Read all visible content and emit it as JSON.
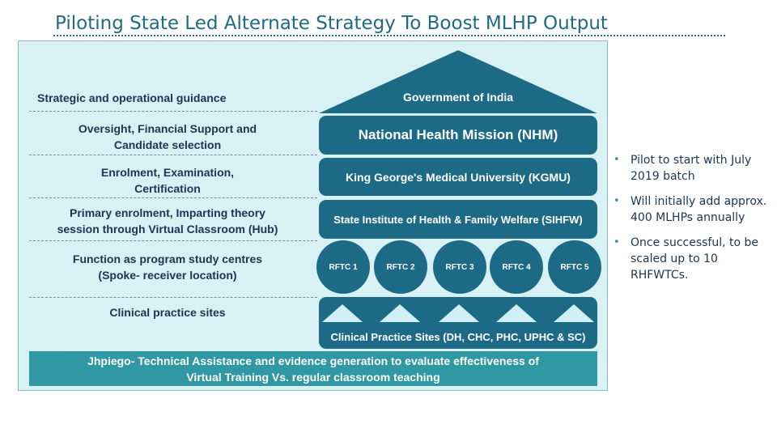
{
  "title": "Piloting State Led Alternate Strategy To Boost MLHP Output",
  "left_labels": [
    "Strategic and operational guidance",
    "Oversight, Financial Support and\nCandidate selection",
    "Enrolment, Examination,\nCertification",
    "Primary enrolment, Imparting theory\nsession through Virtual Classroom (Hub)",
    "Function as program study centres\n(Spoke- receiver location)",
    "Clinical practice sites"
  ],
  "tiers": {
    "goi": "Government of India",
    "nhm": "National Health Mission (NHM)",
    "kgmu": "King George's Medical University (KGMU)",
    "sihfw": "State Institute of Health & Family Welfare (SIHFW)",
    "rftc": [
      "RFTC 1",
      "RFTC 2",
      "RFTC 3",
      "RFTC 4",
      "RFTC 5"
    ],
    "sites": "Clinical Practice Sites (DH, CHC, PHC, UPHC & SC)"
  },
  "footer": "Jhpiego- Technical Assistance and evidence generation to evaluate effectiveness of\nVirtual Training Vs.  regular classroom teaching",
  "bullets": [
    "Pilot to start with July 2019 batch",
    "Will initially add approx. 400 MLHPs annually",
    "Once successful, to be scaled up to 10 RHFWTCs."
  ],
  "colors": {
    "title": "#1f6b83",
    "panel_bg": "#d7f1f5",
    "box_fill": "#1d6a87",
    "footer_fill": "#2f98a3",
    "label_text": "#1b3553"
  }
}
